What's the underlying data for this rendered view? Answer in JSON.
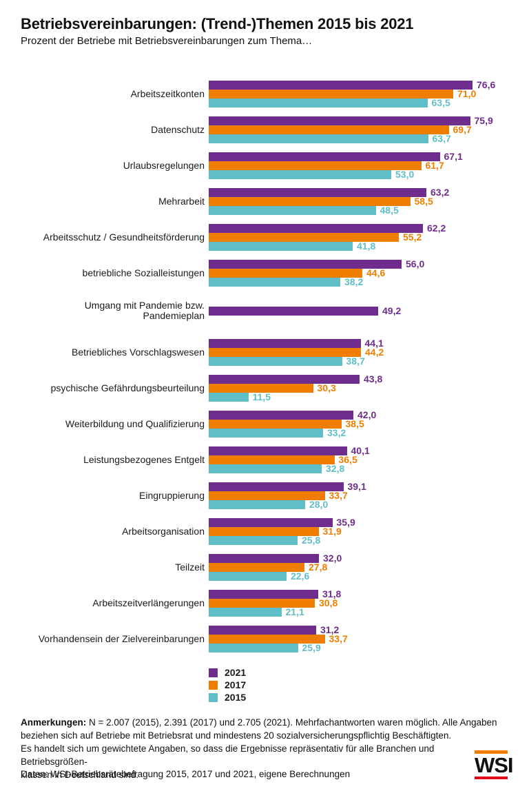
{
  "header": {
    "title": "Betriebsvereinbarungen: (Trend-)Themen 2015 bis 2021",
    "subtitle": "Prozent der Betriebe mit Betriebsvereinbarungen zum Thema…"
  },
  "chart_data": {
    "type": "bar",
    "orientation": "horizontal",
    "unit": "percent of establishments",
    "title": "Betriebsvereinbarungen: (Trend-)Themen 2015 bis 2021",
    "subtitle": "Prozent der Betriebe mit Betriebsvereinbarungen zum Thema…",
    "grid": false,
    "legend_position": "bottom",
    "value_labels": true,
    "decimal_separator": ",",
    "categories": [
      "Arbeitszeitkonten",
      "Datenschutz",
      "Urlaubsregelungen",
      "Mehrarbeit",
      "Arbeitsschutz / Gesundheitsförderung",
      "betriebliche Sozialleistungen",
      "Umgang mit Pandemie bzw. Pandemieplan",
      "Betriebliches Vorschlagswesen",
      "psychische Gefährdungsbeurteilung",
      "Weiterbildung und Qualifizierung",
      "Leistungsbezogenes Entgelt",
      "Eingruppierung",
      "Arbeitsorganisation",
      "Teilzeit",
      "Arbeitszeitverlängerungen",
      "Vorhandensein der Zielvereinbarungen"
    ],
    "series": [
      {
        "name": "2021",
        "color": "#6E2D8C",
        "values": [
          76.6,
          75.9,
          67.1,
          63.2,
          62.2,
          56.0,
          49.2,
          44.1,
          43.8,
          42.0,
          40.1,
          39.1,
          35.9,
          32.0,
          31.8,
          31.2
        ]
      },
      {
        "name": "2017",
        "color": "#EF7D00",
        "values": [
          71.0,
          69.7,
          61.7,
          58.5,
          55.2,
          44.6,
          null,
          44.2,
          30.3,
          38.5,
          36.5,
          33.7,
          31.9,
          27.8,
          30.8,
          33.7
        ]
      },
      {
        "name": "2015",
        "color": "#5FBEC8",
        "values": [
          63.5,
          63.7,
          53.0,
          48.5,
          41.8,
          38.2,
          null,
          38.7,
          11.5,
          33.2,
          32.8,
          28.0,
          25.8,
          22.6,
          21.1,
          25.9
        ]
      }
    ]
  },
  "legend": {
    "items": [
      {
        "label": "2021",
        "color": "#6E2D8C"
      },
      {
        "label": "2017",
        "color": "#EF7D00"
      },
      {
        "label": "2015",
        "color": "#5FBEC8"
      }
    ]
  },
  "notes": {
    "label": "Anmerkungen:",
    "lines": [
      "N = 2.007 (2015), 2.391 (2017) und 2.705 (2021). Mehrfachantworten waren möglich. Alle Angaben",
      "beziehen sich auf Betriebe mit Betriebsrat und mindestens 20 sozialversicherungspflichtig Beschäftigten.",
      "Es handelt sich um gewichtete Angaben, so dass die Ergebnisse repräsentativ für alle Branchen und Betriebsgrößen-",
      "klassen in Deutschland sind."
    ]
  },
  "source": "Daten: WSI-Betriebsrätebefragung 2015, 2017 und 2021, eigene Berechnungen",
  "logo": {
    "text": "WSI",
    "top_bar_color": "#EF7D00",
    "bottom_bar_color": "#E2001A"
  }
}
